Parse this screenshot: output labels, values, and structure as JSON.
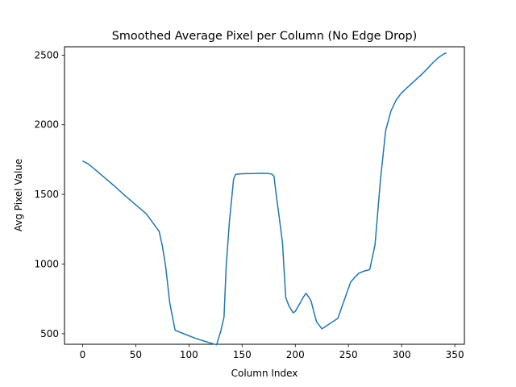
{
  "chart_data": {
    "type": "line",
    "title": "Smoothed Average Pixel per Column (No Edge Drop)",
    "xlabel": "Column Index",
    "ylabel": "Avg Pixel Value",
    "xlim": [
      -17,
      359
    ],
    "ylim": [
      424,
      2560
    ],
    "xticks": [
      0,
      50,
      100,
      150,
      200,
      250,
      300,
      350
    ],
    "yticks": [
      500,
      1000,
      1500,
      2000,
      2500
    ],
    "grid": false,
    "color": "#1f77b4",
    "series": [
      {
        "x": [
          0,
          5,
          10,
          20,
          30,
          40,
          50,
          60,
          72,
          75,
          78,
          82,
          87,
          95,
          105,
          115,
          126,
          130,
          133,
          135,
          138,
          142,
          144,
          150,
          160,
          170,
          175,
          178,
          180,
          182,
          185,
          188,
          191,
          194,
          198,
          200,
          203,
          207,
          210,
          213,
          215,
          218,
          220,
          225,
          240,
          252,
          256,
          260,
          265,
          270,
          275,
          280,
          285,
          290,
          295,
          300,
          305,
          310,
          320,
          330,
          335,
          340,
          342
        ],
        "y": [
          1740,
          1720,
          1690,
          1625,
          1560,
          1490,
          1425,
          1360,
          1235,
          1130,
          990,
          720,
          525,
          500,
          470,
          445,
          420,
          520,
          620,
          980,
          1300,
          1610,
          1645,
          1648,
          1650,
          1652,
          1650,
          1645,
          1630,
          1500,
          1330,
          1150,
          760,
          700,
          650,
          660,
          700,
          755,
          790,
          760,
          730,
          640,
          585,
          535,
          610,
          870,
          905,
          935,
          950,
          960,
          1140,
          1600,
          1960,
          2100,
          2180,
          2230,
          2265,
          2300,
          2370,
          2450,
          2485,
          2510,
          2515
        ]
      }
    ]
  }
}
